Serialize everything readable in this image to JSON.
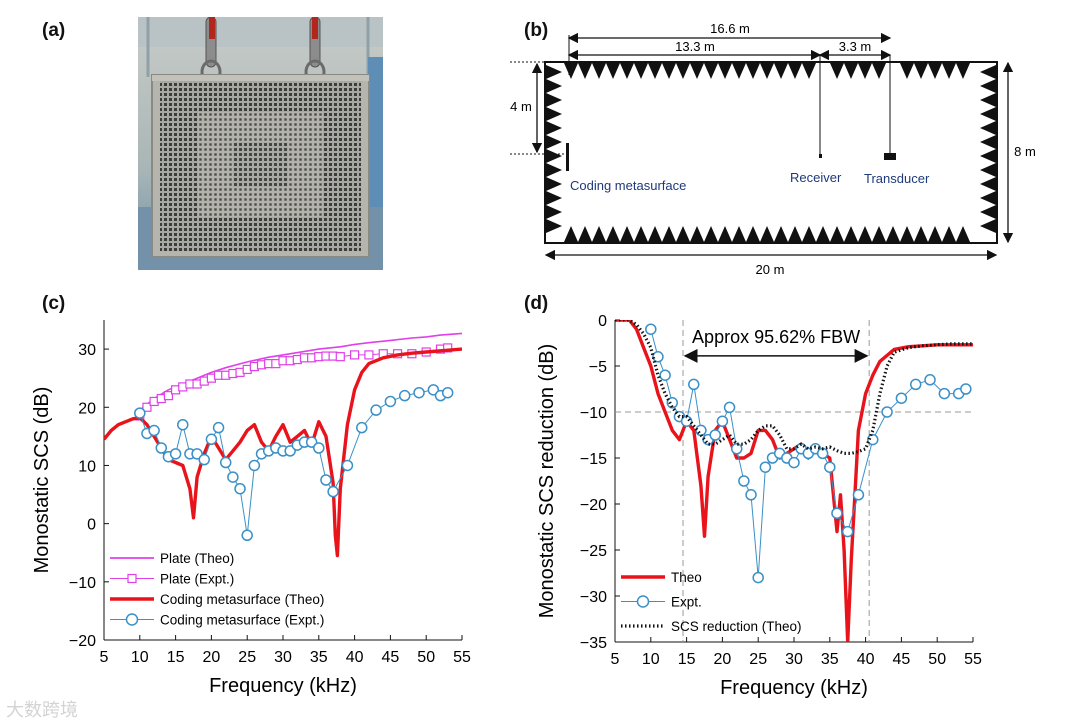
{
  "labels": {
    "a": "(a)",
    "b": "(b)",
    "c": "(c)",
    "d": "(d)"
  },
  "schematic": {
    "dim_total": "16.6 m",
    "dim_receiver": "13.3 m",
    "dim_transducer": "3.3 m",
    "dim_height_half": "4 m",
    "dim_height": "8 m",
    "dim_width": "20 m",
    "label_metasurface": "Coding metasurface",
    "label_receiver": "Receiver",
    "label_transducer": "Transducer"
  },
  "watermark": "大数跨境",
  "colors": {
    "magenta": "#e040e8",
    "red": "#e8131b",
    "blue": "#3a90c7",
    "black": "#111111"
  },
  "chart_data": [
    {
      "type": "line",
      "panel": "c",
      "xlabel": "Frequency (kHz)",
      "ylabel": "Monostatic SCS (dB)",
      "xlim": [
        5,
        55
      ],
      "ylim": [
        -20,
        35
      ],
      "xticks": [
        5,
        10,
        15,
        20,
        25,
        30,
        35,
        40,
        45,
        50,
        55
      ],
      "yticks": [
        -20,
        -10,
        0,
        10,
        20,
        30
      ],
      "legend": [
        "Plate (Theo)",
        "Plate  (Expt.)",
        "Coding metasurface  (Theo)",
        "Coding metasurface  (Expt.)"
      ],
      "series": [
        {
          "name": "Plate (Theo)",
          "style": "line",
          "color": "#e040e8",
          "x": [
            10,
            12,
            14,
            16,
            18,
            20,
            22,
            25,
            28,
            30,
            33,
            35,
            38,
            40,
            42,
            45,
            48,
            50,
            52,
            55
          ],
          "y": [
            19.5,
            21.5,
            23,
            24,
            25,
            26,
            26.8,
            27.8,
            28.6,
            29,
            29.6,
            30,
            30.4,
            30.8,
            31.1,
            31.5,
            31.9,
            32.1,
            32.4,
            32.7
          ]
        },
        {
          "name": "Plate  (Expt.)",
          "style": "square",
          "color": "#e040e8",
          "x": [
            10,
            11,
            12,
            13,
            14,
            15,
            16,
            17,
            18,
            19,
            20,
            21,
            22,
            23,
            24,
            25,
            26,
            27,
            28,
            29,
            30,
            31,
            32,
            33,
            34,
            35,
            36,
            37,
            38,
            40,
            42,
            44,
            46,
            48,
            50,
            52,
            53
          ],
          "y": [
            18.5,
            20,
            21,
            21.5,
            22,
            23,
            23.5,
            24,
            24,
            24.5,
            25,
            25.5,
            25.5,
            25.8,
            26,
            26.5,
            27,
            27.3,
            27.5,
            27.5,
            28,
            28,
            28.2,
            28.5,
            28.5,
            28.7,
            28.8,
            28.8,
            28.7,
            29,
            29,
            29.2,
            29.2,
            29.2,
            29.5,
            30,
            30.2
          ]
        },
        {
          "name": "Coding metasurface  (Theo)",
          "style": "thick",
          "color": "#e8131b",
          "x": [
            5,
            6,
            7,
            8,
            9,
            10,
            11,
            12,
            13,
            14,
            15,
            16,
            17,
            17.5,
            18,
            19,
            20,
            21,
            22,
            23,
            24,
            25,
            26,
            27,
            28,
            29,
            30,
            31,
            32,
            33,
            34,
            35,
            36,
            37,
            37.3,
            37.6,
            38,
            39,
            40,
            41,
            42,
            44,
            46,
            48,
            50,
            52,
            55
          ],
          "y": [
            14.5,
            16,
            17,
            17.5,
            18,
            18.2,
            17,
            15,
            13,
            11,
            10.5,
            10,
            6,
            1,
            8,
            12,
            15,
            13,
            11,
            12.5,
            14,
            16,
            17,
            14,
            12.5,
            15,
            17,
            14,
            15,
            16,
            13.5,
            17.5,
            15,
            7,
            -2,
            -5.5,
            6,
            17,
            23,
            26,
            27.5,
            28.5,
            29,
            29.3,
            29.5,
            29.7,
            30
          ]
        },
        {
          "name": "Coding metasurface  (Expt.)",
          "style": "circle",
          "color": "#3a90c7",
          "x": [
            10,
            11,
            12,
            13,
            14,
            15,
            16,
            17,
            18,
            19,
            20,
            21,
            22,
            23,
            24,
            25,
            26,
            27,
            28,
            29,
            30,
            31,
            32,
            33,
            34,
            35,
            36,
            37,
            39,
            41,
            43,
            45,
            47,
            49,
            51,
            52,
            53
          ],
          "y": [
            19,
            15.5,
            16,
            13,
            11.5,
            12,
            17,
            12,
            12,
            11,
            14.5,
            16.5,
            10.5,
            8,
            6,
            -2,
            10,
            12,
            12.5,
            13,
            12.5,
            12.5,
            13.5,
            14,
            14,
            13,
            7.5,
            5.5,
            10,
            16.5,
            19.5,
            21,
            22,
            22.5,
            23,
            22,
            22.5
          ]
        }
      ]
    },
    {
      "type": "line",
      "panel": "d",
      "xlabel": "Frequency (kHz)",
      "ylabel": "Monostatic SCS reduction (dB)",
      "xlim": [
        5,
        55
      ],
      "ylim": [
        -35,
        0
      ],
      "xticks": [
        5,
        10,
        15,
        20,
        25,
        30,
        35,
        40,
        45,
        50,
        55
      ],
      "yticks": [
        -35,
        -30,
        -25,
        -20,
        -15,
        -10,
        -5,
        0
      ],
      "annotation": "Approx 95.62% FBW",
      "fbw_range": [
        14.5,
        40.5
      ],
      "reference_line": -10,
      "legend": [
        "Theo",
        "Expt.",
        "SCS reduction (Theo)"
      ],
      "series": [
        {
          "name": "Theo",
          "style": "thick",
          "color": "#e8131b",
          "x": [
            5,
            7,
            8,
            9,
            10,
            11,
            12,
            13,
            14,
            15,
            16,
            17,
            17.5,
            18,
            19,
            20,
            21,
            22,
            23,
            24,
            25,
            26,
            27,
            28,
            29,
            30,
            31,
            32,
            33,
            34,
            35,
            36,
            36.5,
            37,
            37.5,
            38,
            38.5,
            39,
            40,
            41,
            42,
            44,
            46,
            48,
            50,
            52,
            55
          ],
          "y": [
            0,
            0,
            -1,
            -3,
            -5,
            -8,
            -10,
            -12,
            -13,
            -11,
            -12,
            -18,
            -23.5,
            -17,
            -12,
            -11,
            -13,
            -15,
            -15,
            -14.5,
            -12,
            -12,
            -13,
            -15,
            -14.5,
            -14,
            -13.5,
            -15,
            -14,
            -14.5,
            -15,
            -23,
            -19,
            -25,
            -35,
            -26,
            -19,
            -12,
            -8,
            -6,
            -4.5,
            -3.2,
            -2.9,
            -2.8,
            -2.7,
            -2.7,
            -2.7
          ]
        },
        {
          "name": "Expt.",
          "style": "circle",
          "color": "#3a90c7",
          "x": [
            10,
            11,
            12,
            13,
            14,
            15,
            16,
            17,
            18,
            19,
            20,
            21,
            22,
            23,
            24,
            25,
            26,
            27,
            28,
            29,
            30,
            31,
            32,
            33,
            34,
            35,
            36,
            37.5,
            39,
            41,
            43,
            45,
            47,
            49,
            51,
            53,
            54
          ],
          "y": [
            -1,
            -4,
            -6,
            -9,
            -10.5,
            -11,
            -7,
            -12,
            -13,
            -12.5,
            -11,
            -9.5,
            -14,
            -17.5,
            -19,
            -28,
            -16,
            -15,
            -14.5,
            -15,
            -15.5,
            -14,
            -14.5,
            -14,
            -14.5,
            -16,
            -21,
            -23,
            -19,
            -13,
            -10,
            -8.5,
            -7,
            -6.5,
            -8,
            -8,
            -7.5
          ]
        },
        {
          "name": "SCS reduction (Theo)",
          "style": "dotted",
          "color": "#111111",
          "x": [
            5,
            7,
            8,
            9,
            10,
            11,
            12,
            13,
            14,
            15,
            16,
            17,
            18,
            19,
            20,
            21,
            22,
            23,
            24,
            25,
            26,
            27,
            28,
            29,
            30,
            31,
            32,
            33,
            34,
            35,
            36,
            37,
            38,
            39,
            40,
            41,
            42,
            43,
            44,
            46,
            48,
            50,
            52,
            55
          ],
          "y": [
            0,
            0,
            -0.5,
            -1.5,
            -3,
            -6,
            -8,
            -9.5,
            -10.5,
            -10.5,
            -11.5,
            -12.5,
            -13.5,
            -13.5,
            -13,
            -12.5,
            -13.5,
            -13.5,
            -13,
            -12,
            -11.5,
            -11.5,
            -12.5,
            -14,
            -14,
            -13.5,
            -14,
            -13.8,
            -14,
            -13.8,
            -14.2,
            -14.5,
            -14.5,
            -14.3,
            -14,
            -12,
            -8,
            -5,
            -3.5,
            -3,
            -2.8,
            -2.7,
            -2.6,
            -2.6
          ]
        }
      ]
    }
  ]
}
